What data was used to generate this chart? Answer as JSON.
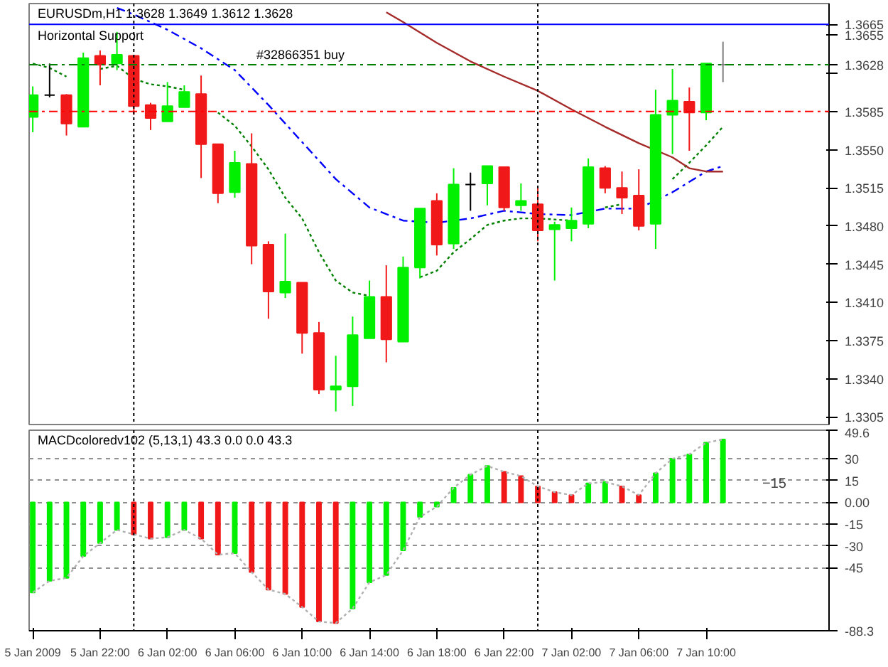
{
  "chart_data": [
    {
      "type": "candlestick",
      "title": "EURUSDm,H1  1.3628 1.3649 1.3612 1.3628",
      "x": [
        "2009-01-05T18:00",
        "2009-01-05T19:00",
        "2009-01-05T20:00",
        "2009-01-05T21:00",
        "2009-01-05T22:00",
        "2009-01-05T23:00",
        "2009-01-06T00:00",
        "2009-01-06T01:00",
        "2009-01-06T02:00",
        "2009-01-06T03:00",
        "2009-01-06T04:00",
        "2009-01-06T05:00",
        "2009-01-06T06:00",
        "2009-01-06T07:00",
        "2009-01-06T08:00",
        "2009-01-06T09:00",
        "2009-01-06T10:00",
        "2009-01-06T11:00",
        "2009-01-06T12:00",
        "2009-01-06T13:00",
        "2009-01-06T14:00",
        "2009-01-06T15:00",
        "2009-01-06T16:00",
        "2009-01-06T17:00",
        "2009-01-06T18:00",
        "2009-01-06T19:00",
        "2009-01-06T20:00",
        "2009-01-06T21:00",
        "2009-01-06T22:00",
        "2009-01-06T23:00",
        "2009-01-07T00:00",
        "2009-01-07T01:00",
        "2009-01-07T02:00",
        "2009-01-07T03:00",
        "2009-01-07T04:00",
        "2009-01-07T05:00",
        "2009-01-07T06:00",
        "2009-01-07T07:00",
        "2009-01-07T08:00",
        "2009-01-07T09:00",
        "2009-01-07T10:00",
        "2009-01-07T11:00"
      ],
      "ohlc": [
        [
          1.358,
          1.3608,
          1.3566,
          1.36
        ],
        [
          1.36,
          1.3629,
          1.3598,
          1.36
        ],
        [
          1.36,
          1.3601,
          1.3563,
          1.3574
        ],
        [
          1.3571,
          1.3639,
          1.3571,
          1.3634
        ],
        [
          1.3636,
          1.3641,
          1.3609,
          1.3628
        ],
        [
          1.3629,
          1.3658,
          1.3623,
          1.3637
        ],
        [
          1.3636,
          1.3636,
          1.3582,
          1.359
        ],
        [
          1.3591,
          1.3593,
          1.3568,
          1.3579
        ],
        [
          1.3576,
          1.3612,
          1.3576,
          1.359
        ],
        [
          1.3589,
          1.3609,
          1.3589,
          1.3603
        ],
        [
          1.3601,
          1.3618,
          1.3524,
          1.3555
        ],
        [
          1.3555,
          1.3555,
          1.3501,
          1.351
        ],
        [
          1.3511,
          1.3549,
          1.3506,
          1.3538
        ],
        [
          1.3537,
          1.3565,
          1.3445,
          1.3462
        ],
        [
          1.3463,
          1.3466,
          1.3395,
          1.342
        ],
        [
          1.3419,
          1.3473,
          1.3414,
          1.3429
        ],
        [
          1.3428,
          1.3428,
          1.3363,
          1.3382
        ],
        [
          1.3382,
          1.3392,
          1.3326,
          1.333
        ],
        [
          1.333,
          1.3361,
          1.331,
          1.3333
        ],
        [
          1.3333,
          1.3397,
          1.3315,
          1.338
        ],
        [
          1.3377,
          1.343,
          1.3377,
          1.3415
        ],
        [
          1.3415,
          1.3444,
          1.3355,
          1.3376
        ],
        [
          1.3374,
          1.3452,
          1.3374,
          1.3442
        ],
        [
          1.3442,
          1.3496,
          1.3432,
          1.3496
        ],
        [
          1.3503,
          1.351,
          1.3453,
          1.3463
        ],
        [
          1.3464,
          1.3533,
          1.3459,
          1.3518
        ],
        [
          1.3518,
          1.3529,
          1.3494,
          1.3518
        ],
        [
          1.3519,
          1.3535,
          1.3499,
          1.3535
        ],
        [
          1.3534,
          1.3534,
          1.3494,
          1.3497
        ],
        [
          1.3499,
          1.3519,
          1.3494,
          1.3503
        ],
        [
          1.35,
          1.3515,
          1.3466,
          1.3476
        ],
        [
          1.3477,
          1.3484,
          1.343,
          1.3481
        ],
        [
          1.3478,
          1.3497,
          1.3466,
          1.3485
        ],
        [
          1.3482,
          1.3542,
          1.3478,
          1.3534
        ],
        [
          1.3533,
          1.3535,
          1.351,
          1.3515
        ],
        [
          1.3515,
          1.353,
          1.3491,
          1.3506
        ],
        [
          1.3508,
          1.3532,
          1.3476,
          1.348
        ],
        [
          1.3482,
          1.3605,
          1.3459,
          1.3582
        ],
        [
          1.3582,
          1.3624,
          1.3546,
          1.3595
        ],
        [
          1.3594,
          1.3607,
          1.3549,
          1.3584
        ],
        [
          1.3584,
          1.3629,
          1.3577,
          1.3629
        ],
        [
          1.3628,
          1.3649,
          1.3612,
          1.3628
        ]
      ],
      "colors": [
        "#00f000",
        "#000000",
        "#f01818",
        "#00f000",
        "#f01818",
        "#00f000",
        "#f01818",
        "#f01818",
        "#00f000",
        "#00f000",
        "#f01818",
        "#f01818",
        "#00f000",
        "#f01818",
        "#f01818",
        "#00f000",
        "#f01818",
        "#f01818",
        "#00f000",
        "#00f000",
        "#00f000",
        "#f01818",
        "#00f000",
        "#00f000",
        "#f01818",
        "#00f000",
        "#000000",
        "#00f000",
        "#f01818",
        "#00f000",
        "#f01818",
        "#00f000",
        "#00f000",
        "#00f000",
        "#f01818",
        "#f01818",
        "#f01818",
        "#00f000",
        "#00f000",
        "#f01818",
        "#00f000",
        "#808080"
      ],
      "series": [
        {
          "type": "line",
          "color": "#0000ff",
          "line_style": "dashed",
          "x": [
            "2009-01-05T23:00",
            "2009-01-06T00:00",
            "2009-01-06T02:00",
            "2009-01-06T04:00",
            "2009-01-06T06:00",
            "2009-01-06T08:00",
            "2009-01-06T10:00",
            "2009-01-06T12:00",
            "2009-01-06T14:00",
            "2009-01-06T16:00",
            "2009-01-06T18:00",
            "2009-01-06T20:00",
            "2009-01-06T22:00",
            "2009-01-07T00:00",
            "2009-01-07T02:00",
            "2009-01-07T04:00",
            "2009-01-07T06:00",
            "2009-01-07T08:00",
            "2009-01-07T10:00",
            "2009-01-07T11:00"
          ],
          "values": [
            1.368,
            1.3674,
            1.366,
            1.3643,
            1.3623,
            1.3591,
            1.3557,
            1.3523,
            1.3497,
            1.3485,
            1.3483,
            1.3487,
            1.3494,
            1.3491,
            1.349,
            1.3496,
            1.3496,
            1.3511,
            1.353,
            1.3535
          ]
        },
        {
          "type": "line",
          "color": "#008000",
          "line_style": "dotted",
          "x": [
            "2009-01-05T18:00",
            "2009-01-05T19:00",
            "2009-01-05T20:00",
            "2009-01-05T21:00",
            "2009-01-05T22:00",
            "2009-01-05T23:00",
            "2009-01-06T00:00",
            "2009-01-06T01:00",
            "2009-01-06T02:00",
            "2009-01-06T03:00",
            "2009-01-06T04:00",
            "2009-01-06T05:00",
            "2009-01-06T06:00",
            "2009-01-06T07:00",
            "2009-01-06T08:00",
            "2009-01-06T09:00",
            "2009-01-06T10:00",
            "2009-01-06T11:00",
            "2009-01-06T12:00",
            "2009-01-06T13:00",
            "2009-01-06T14:00",
            "2009-01-06T15:00",
            "2009-01-06T16:00",
            "2009-01-06T17:00",
            "2009-01-06T18:00",
            "2009-01-06T19:00",
            "2009-01-06T20:00",
            "2009-01-06T21:00",
            "2009-01-06T22:00",
            "2009-01-06T23:00",
            "2009-01-07T00:00",
            "2009-01-07T01:00",
            "2009-01-07T02:00",
            "2009-01-07T03:00",
            "2009-01-07T04:00",
            "2009-01-07T05:00",
            "2009-01-07T06:00",
            "2009-01-07T07:00",
            "2009-01-07T08:00",
            "2009-01-07T09:00",
            "2009-01-07T10:00",
            "2009-01-07T11:00"
          ],
          "values": [
            1.3629,
            1.3625,
            1.3617,
            null,
            1.3624,
            1.3627,
            1.3615,
            1.361,
            1.3608,
            1.3605,
            null,
            1.3584,
            1.3572,
            1.3553,
            1.3532,
            1.3506,
            1.3487,
            1.3456,
            1.343,
            1.3419,
            1.3416,
            null,
            null,
            1.3433,
            1.3439,
            1.3456,
            1.3468,
            1.3481,
            1.3485,
            1.3487,
            1.3487,
            1.3486,
            1.3485,
            null,
            1.3497,
            1.35,
            null,
            null,
            1.3523,
            1.3538,
            1.3554,
            1.3571
          ]
        },
        {
          "type": "line",
          "color": "#a52a2a",
          "line_style": "solid",
          "x": [
            "2009-01-06T15:00",
            "2009-01-06T16:00",
            "2009-01-06T18:00",
            "2009-01-06T20:00",
            "2009-01-06T22:00",
            "2009-01-07T00:00",
            "2009-01-07T02:00",
            "2009-01-07T04:00",
            "2009-01-07T06:00",
            "2009-01-07T08:00",
            "2009-01-07T09:00",
            "2009-01-07T10:00",
            "2009-01-07T11:00"
          ],
          "values": [
            1.3676,
            1.3667,
            1.3648,
            1.3631,
            1.3617,
            1.3604,
            1.3587,
            1.3571,
            1.3556,
            1.3543,
            1.3533,
            1.353,
            1.353
          ]
        }
      ],
      "ref_lines": [
        {
          "axis": "y",
          "value": 1.3665,
          "label": "Horizontal Support",
          "color": "#0000ff",
          "line_style": "solid"
        },
        {
          "axis": "y",
          "value": 1.3628,
          "label": "#32866351 buy",
          "color": "#008000",
          "line_style": "dashed"
        },
        {
          "axis": "y",
          "value": 1.3585,
          "color": "#ff0000",
          "line_style": "dashed"
        },
        {
          "axis": "x",
          "value": "2009-01-06T00:00",
          "color": "#000000",
          "line_style": "dotted"
        },
        {
          "axis": "x",
          "value": "2009-01-07T00:00",
          "color": "#000000",
          "line_style": "dotted"
        }
      ],
      "xlim": [
        "2009-01-05T17:47",
        "2009-01-07T17:18"
      ],
      "ylim": [
        1.3298,
        1.3684
      ],
      "yticks": [
        1.3665,
        1.3655,
        1.3628,
        {
          "value": 1.362,
          "label": null
        },
        1.3585,
        {
          "value": 1.355,
          "label": "1.3550"
        },
        1.3515,
        {
          "value": 1.348,
          "label": "1.3480"
        },
        1.3445,
        {
          "value": 1.341,
          "label": "1.3410"
        },
        1.3375,
        {
          "value": 1.334,
          "label": "1.3340"
        },
        1.3305
      ],
      "tick_labels": "y"
    },
    {
      "type": "bar",
      "title": "MACDcoloredv102 (5,13,1) 43.3 0.0 0.0 43.3",
      "x": [
        "2009-01-05T18:00",
        "2009-01-05T19:00",
        "2009-01-05T20:00",
        "2009-01-05T21:00",
        "2009-01-05T22:00",
        "2009-01-05T23:00",
        "2009-01-06T00:00",
        "2009-01-06T01:00",
        "2009-01-06T02:00",
        "2009-01-06T03:00",
        "2009-01-06T04:00",
        "2009-01-06T05:00",
        "2009-01-06T06:00",
        "2009-01-06T07:00",
        "2009-01-06T08:00",
        "2009-01-06T09:00",
        "2009-01-06T10:00",
        "2009-01-06T11:00",
        "2009-01-06T12:00",
        "2009-01-06T13:00",
        "2009-01-06T14:00",
        "2009-01-06T15:00",
        "2009-01-06T16:00",
        "2009-01-06T17:00",
        "2009-01-06T18:00",
        "2009-01-06T19:00",
        "2009-01-06T20:00",
        "2009-01-06T21:00",
        "2009-01-06T22:00",
        "2009-01-06T23:00",
        "2009-01-07T00:00",
        "2009-01-07T01:00",
        "2009-01-07T02:00",
        "2009-01-07T03:00",
        "2009-01-07T04:00",
        "2009-01-07T05:00",
        "2009-01-07T06:00",
        "2009-01-07T07:00",
        "2009-01-07T08:00",
        "2009-01-07T09:00",
        "2009-01-07T10:00",
        "2009-01-07T11:00"
      ],
      "series": [
        {
          "type": "bar",
          "colors": [
            "#00f000",
            "#00f000",
            "#00f000",
            "#00f000",
            "#00f000",
            "#00f000",
            "#f01818",
            "#f01818",
            "#00f000",
            "#00f000",
            "#f01818",
            "#f01818",
            "#00f000",
            "#f01818",
            "#f01818",
            "#f01818",
            "#f01818",
            "#f01818",
            "#f01818",
            "#00f000",
            "#00f000",
            "#00f000",
            "#00f000",
            "#00f000",
            "#00f000",
            "#00f000",
            "#00f000",
            "#00f000",
            "#f01818",
            "#f01818",
            "#f01818",
            "#f01818",
            "#f01818",
            "#00f000",
            "#00f000",
            "#f01818",
            "#f01818",
            "#00f000",
            "#00f000",
            "#00f000",
            "#00f000",
            "#00f000"
          ],
          "values": [
            -62,
            -54,
            -52,
            -37,
            -28,
            -19,
            -22,
            -25,
            -24,
            -19,
            -25,
            -36,
            -35,
            -48,
            -60,
            -63,
            -72,
            -82,
            -83,
            -73,
            -55,
            -50,
            -33,
            -10,
            -3,
            10,
            19,
            25,
            21,
            18,
            11,
            7,
            5,
            13,
            14,
            11,
            5,
            20,
            30,
            33,
            41,
            43.3
          ]
        },
        {
          "type": "line",
          "color": "#b0b0b0",
          "line_style": "dotted",
          "values": [
            -62,
            -54,
            -52,
            -37,
            -28,
            -19,
            -22,
            -25,
            -24,
            -19,
            -25,
            -36,
            -35,
            -48,
            -60,
            -63,
            -72,
            -82,
            -83,
            -73,
            -55,
            -50,
            -33,
            -10,
            -3,
            10,
            19,
            25,
            21,
            18,
            11,
            7,
            5,
            13,
            14,
            11,
            5,
            20,
            30,
            33,
            41,
            43.3
          ]
        }
      ],
      "annotations": [
        "−15"
      ],
      "ref_lines": [
        {
          "axis": "x",
          "value": "2009-01-06T00:00",
          "color": "#000000",
          "line_style": "dotted"
        },
        {
          "axis": "x",
          "value": "2009-01-07T00:00",
          "color": "#000000",
          "line_style": "dotted"
        }
      ],
      "xlim": [
        "2009-01-05T17:47",
        "2009-01-07T17:18"
      ],
      "xticks": [
        {
          "value": "2009-01-05T18:00",
          "label": "5 Jan 2009"
        },
        {
          "value": "2009-01-05T22:00",
          "label": "5 Jan 22:00"
        },
        {
          "value": "2009-01-06T02:00",
          "label": "6 Jan 02:00"
        },
        {
          "value": "2009-01-06T06:00",
          "label": "6 Jan 06:00"
        },
        {
          "value": "2009-01-06T10:00",
          "label": "6 Jan 10:00"
        },
        {
          "value": "2009-01-06T14:00",
          "label": "6 Jan 14:00"
        },
        {
          "value": "2009-01-06T18:00",
          "label": "6 Jan 18:00"
        },
        {
          "value": "2009-01-06T22:00",
          "label": "6 Jan 22:00"
        },
        {
          "value": "2009-01-07T02:00",
          "label": "7 Jan 02:00"
        },
        {
          "value": "2009-01-07T06:00",
          "label": "7 Jan 06:00"
        },
        {
          "value": "2009-01-07T10:00",
          "label": "7 Jan 10:00"
        }
      ],
      "ylim": [
        -88.3,
        49.6
      ],
      "yticks": [
        49.6,
        30,
        15,
        {
          "value": 0,
          "label": "0.00"
        },
        -15,
        -30,
        -45,
        -88.3
      ],
      "grid": "y"
    }
  ]
}
